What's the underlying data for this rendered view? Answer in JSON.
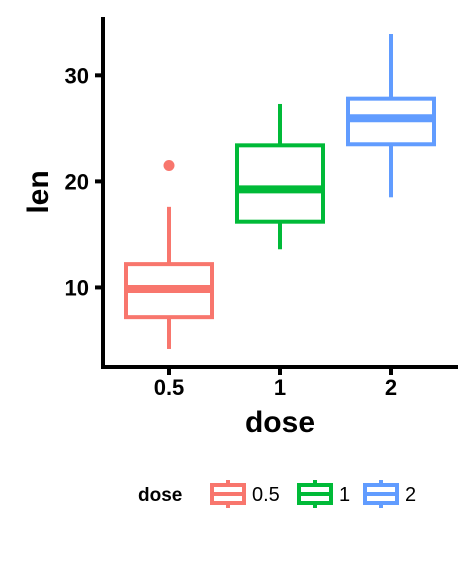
{
  "chart_data": {
    "type": "boxplot",
    "xlabel": "dose",
    "ylabel": "len",
    "ylim": [
      2.5,
      35.5
    ],
    "yticks": [
      10,
      20,
      30
    ],
    "categories": [
      "0.5",
      "1",
      "2"
    ],
    "boxes": [
      {
        "category": "0.5",
        "color": "#F8766D",
        "whisker_low": 4.2,
        "q1": 7.2,
        "median": 9.85,
        "q3": 12.2,
        "whisker_high": 17.6,
        "outliers": [
          21.5
        ]
      },
      {
        "category": "1",
        "color": "#00BA38",
        "whisker_low": 13.6,
        "q1": 16.2,
        "median": 19.25,
        "q3": 23.4,
        "whisker_high": 27.3,
        "outliers": []
      },
      {
        "category": "2",
        "color": "#619CFF",
        "whisker_low": 18.5,
        "q1": 23.5,
        "median": 25.95,
        "q3": 27.8,
        "whisker_high": 33.9,
        "outliers": []
      }
    ],
    "legend": {
      "title": "dose",
      "position": "bottom",
      "entries": [
        {
          "label": "0.5",
          "color": "#F8766D"
        },
        {
          "label": "1",
          "color": "#00BA38"
        },
        {
          "label": "2",
          "color": "#619CFF"
        }
      ]
    },
    "grid": false
  }
}
